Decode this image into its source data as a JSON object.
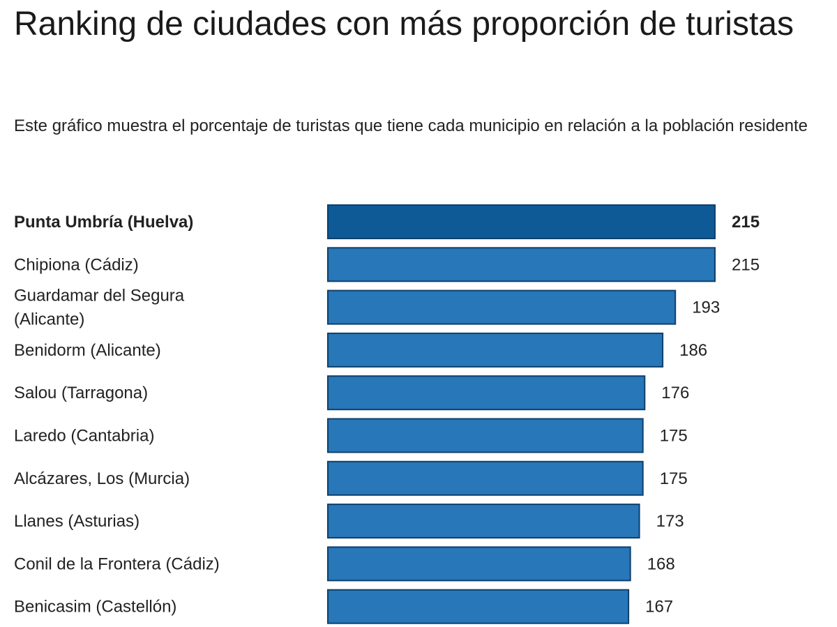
{
  "title": "Ranking de ciudades con más proporción de turistas",
  "subtitle": "Este gráfico muestra el porcentaje de turistas que tiene cada municipio en relación a la población residente",
  "colors": {
    "bar": "#2777b9",
    "bar_highlight": "#0d5a96",
    "bar_border": "#0f3f6b",
    "text": "#222222"
  },
  "chart_data": {
    "type": "bar",
    "orientation": "horizontal",
    "title": "Ranking de ciudades con más proporción de turistas",
    "subtitle": "Este gráfico muestra el porcentaje de turistas que tiene cada municipio en relación a la población residente",
    "categories": [
      "Punta Umbría (Huelva)",
      "Chipiona (Cádiz)",
      "Guardamar del Segura (Alicante)",
      "Benidorm (Alicante)",
      "Salou (Tarragona)",
      "Laredo (Cantabria)",
      "Alcázares, Los (Murcia)",
      "Llanes (Asturias)",
      "Conil de la Frontera (Cádiz)",
      "Benicasim (Castellón)"
    ],
    "category_lines": [
      [
        "Punta Umbría (Huelva)"
      ],
      [
        "Chipiona (Cádiz)"
      ],
      [
        "Guardamar del Segura",
        "(Alicante)"
      ],
      [
        "Benidorm (Alicante)"
      ],
      [
        "Salou (Tarragona)"
      ],
      [
        "Laredo (Cantabria)"
      ],
      [
        "Alcázares, Los (Murcia)"
      ],
      [
        "Llanes (Asturias)"
      ],
      [
        "Conil de la Frontera (Cádiz)"
      ],
      [
        "Benicasim (Castellón)"
      ]
    ],
    "values": [
      215,
      215,
      193,
      186,
      176,
      175,
      175,
      173,
      168,
      167
    ],
    "highlighted_index": 0,
    "xlim": [
      0,
      215
    ],
    "grid": false,
    "legend": "none",
    "data_labels": true
  }
}
